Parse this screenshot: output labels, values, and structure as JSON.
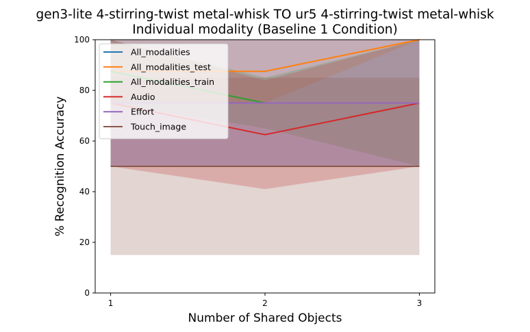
{
  "chart_data": {
    "type": "line",
    "title": "gen3-lite 4-stirring-twist metal-whisk TO ur5 4-stirring-twist metal-whisk",
    "subtitle": "Individual modality (Baseline 1 Condition)",
    "xlabel": "Number of Shared Objects",
    "ylabel": "% Recognition Accuracy",
    "x": [
      1,
      2,
      3
    ],
    "x_ticks": [
      "1",
      "2",
      "3"
    ],
    "y_ticks": [
      "0",
      "20",
      "40",
      "60",
      "80",
      "100"
    ],
    "xlim": [
      0.9,
      3.1
    ],
    "ylim": [
      0,
      100
    ],
    "grid": false,
    "legend_position": "top-left",
    "series": [
      {
        "name": "All_modalities",
        "color": "#1f77b4",
        "values": [
          75,
          75,
          75
        ],
        "band_lower": [
          50,
          50,
          50
        ],
        "band_upper": [
          100,
          100,
          100
        ]
      },
      {
        "name": "All_modalities_test",
        "color": "#ff7f0e",
        "values": [
          87.5,
          87.5,
          100
        ],
        "band_lower": [
          75,
          75,
          100
        ],
        "band_upper": [
          100,
          100,
          100
        ]
      },
      {
        "name": "All_modalities_train",
        "color": "#2ca02c",
        "values": [
          87.5,
          75,
          75
        ],
        "band_lower": [
          75,
          65,
          50
        ],
        "band_upper": [
          100,
          85,
          100
        ]
      },
      {
        "name": "Audio",
        "color": "#d62728",
        "values": [
          75,
          62.5,
          75
        ],
        "band_lower": [
          50,
          41,
          50
        ],
        "band_upper": [
          100,
          84,
          100
        ]
      },
      {
        "name": "Effort",
        "color": "#9467bd",
        "values": [
          75,
          75,
          75
        ],
        "band_lower": [
          50,
          50,
          50
        ],
        "band_upper": [
          100,
          100,
          100
        ]
      },
      {
        "name": "Touch_image",
        "color": "#8c564b",
        "values": [
          50,
          50,
          50
        ],
        "band_lower": [
          15,
          15,
          15
        ],
        "band_upper": [
          85,
          85,
          85
        ]
      }
    ]
  }
}
